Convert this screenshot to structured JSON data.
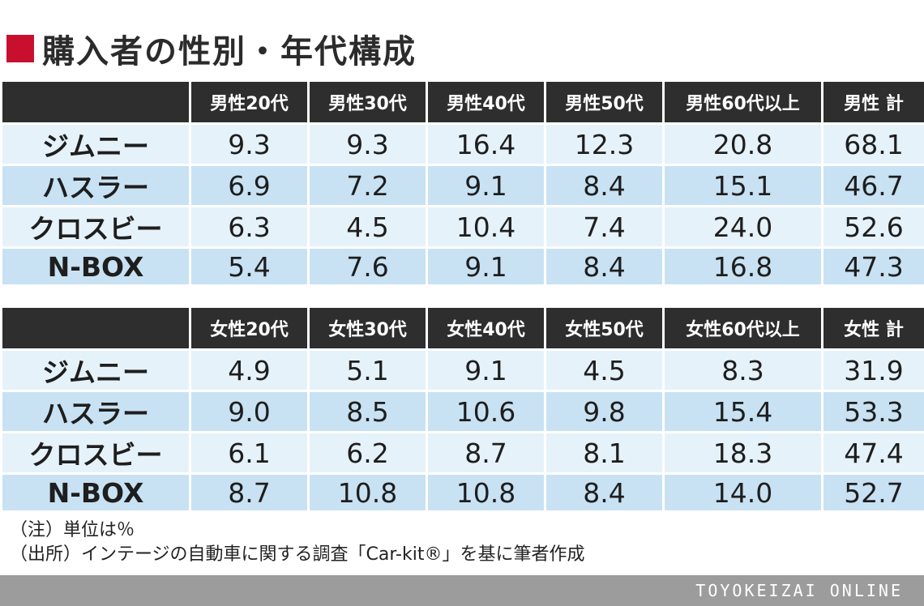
{
  "title": "購入者の性別・年代構成",
  "chart_data": [
    {
      "type": "table",
      "columns": [
        "",
        "男性20代",
        "男性30代",
        "男性40代",
        "男性50代",
        "男性60代以上",
        "男性 計"
      ],
      "rows": [
        {
          "label": "ジムニー",
          "values": [
            "9.3",
            "9.3",
            "16.4",
            "12.3",
            "20.8",
            "68.1"
          ]
        },
        {
          "label": "ハスラー",
          "values": [
            "6.9",
            "7.2",
            "9.1",
            "8.4",
            "15.1",
            "46.7"
          ]
        },
        {
          "label": "クロスビー",
          "values": [
            "6.3",
            "4.5",
            "10.4",
            "7.4",
            "24.0",
            "52.6"
          ]
        },
        {
          "label": "N-BOX",
          "values": [
            "5.4",
            "7.6",
            "9.1",
            "8.4",
            "16.8",
            "47.3"
          ]
        }
      ]
    },
    {
      "type": "table",
      "columns": [
        "",
        "女性20代",
        "女性30代",
        "女性40代",
        "女性50代",
        "女性60代以上",
        "女性 計"
      ],
      "rows": [
        {
          "label": "ジムニー",
          "values": [
            "4.9",
            "5.1",
            "9.1",
            "4.5",
            "8.3",
            "31.9"
          ]
        },
        {
          "label": "ハスラー",
          "values": [
            "9.0",
            "8.5",
            "10.6",
            "9.8",
            "15.4",
            "53.3"
          ]
        },
        {
          "label": "クロスビー",
          "values": [
            "6.1",
            "6.2",
            "8.7",
            "8.1",
            "18.3",
            "47.4"
          ]
        },
        {
          "label": "N-BOX",
          "values": [
            "8.7",
            "10.8",
            "10.8",
            "8.4",
            "14.0",
            "52.7"
          ]
        }
      ]
    }
  ],
  "notes": {
    "unit": "（注）単位は％",
    "source": "（出所）インテージの自動車に関する調査「Car-kit®」を基に筆者作成"
  },
  "footer": "TOYOKEIZAI ONLINE",
  "colors": {
    "accent": "#c8102e",
    "header_bg": "#2e2e2e",
    "row_light": "#e6f2fa",
    "row_dark": "#c8e2f3",
    "footer_bg": "#9c9c9c"
  }
}
